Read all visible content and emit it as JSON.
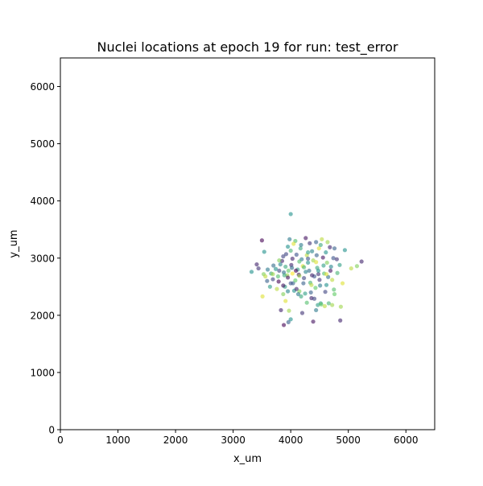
{
  "chart_data": {
    "type": "scatter",
    "title": "Nuclei locations at epoch 19 for run: test_error",
    "xlabel": "x_um",
    "ylabel": "y_um",
    "xlim": [
      0,
      6500
    ],
    "ylim": [
      0,
      6500
    ],
    "xticks": [
      0,
      1000,
      2000,
      3000,
      4000,
      5000,
      6000
    ],
    "yticks": [
      0,
      1000,
      2000,
      3000,
      4000,
      5000,
      6000
    ],
    "grid": false,
    "legend": "none",
    "colormap": "viridis",
    "marker_alpha": 0.6,
    "points": [
      [
        4000,
        3770,
        0.5
      ],
      [
        3500,
        3310,
        0.0
      ],
      [
        3540,
        3110,
        0.5
      ],
      [
        3320,
        2760,
        0.5
      ],
      [
        3410,
        2890,
        0.1
      ],
      [
        3440,
        2820,
        0.15
      ],
      [
        3530,
        2720,
        0.8
      ],
      [
        3560,
        2680,
        0.9
      ],
      [
        3590,
        2600,
        0.3
      ],
      [
        3660,
        2730,
        0.6
      ],
      [
        3690,
        2630,
        0.2
      ],
      [
        3740,
        2810,
        0.5
      ],
      [
        3780,
        2680,
        0.7
      ],
      [
        3790,
        2590,
        0.0
      ],
      [
        3820,
        2890,
        0.45
      ],
      [
        3850,
        2950,
        0.1
      ],
      [
        3870,
        3030,
        0.2
      ],
      [
        3880,
        2750,
        0.35
      ],
      [
        3900,
        2500,
        0.55
      ],
      [
        3910,
        2250,
        0.95
      ],
      [
        3940,
        2700,
        0.85
      ],
      [
        3960,
        2780,
        0.75
      ],
      [
        3980,
        3330,
        0.4
      ],
      [
        4000,
        3130,
        0.65
      ],
      [
        4010,
        2880,
        0.1
      ],
      [
        4030,
        2730,
        1.0
      ],
      [
        4040,
        2560,
        0.3
      ],
      [
        4060,
        2430,
        0.5
      ],
      [
        4080,
        3300,
        0.7
      ],
      [
        4100,
        3060,
        0.25
      ],
      [
        4120,
        2800,
        0.55
      ],
      [
        4140,
        2710,
        0.05
      ],
      [
        4150,
        2420,
        0.8
      ],
      [
        4170,
        3170,
        0.6
      ],
      [
        4190,
        2980,
        0.4
      ],
      [
        4210,
        2860,
        0.95
      ],
      [
        4230,
        2650,
        0.2
      ],
      [
        4250,
        2380,
        0.55
      ],
      [
        4260,
        3350,
        0.05
      ],
      [
        4280,
        3050,
        0.9
      ],
      [
        4300,
        2920,
        0.5
      ],
      [
        4320,
        2780,
        0.35
      ],
      [
        4340,
        2570,
        0.65
      ],
      [
        4360,
        2300,
        0.1
      ],
      [
        4370,
        3120,
        0.45
      ],
      [
        4390,
        2960,
        0.85
      ],
      [
        4410,
        2680,
        0.25
      ],
      [
        4430,
        2480,
        0.75
      ],
      [
        4440,
        3280,
        0.3
      ],
      [
        4460,
        2830,
        0.6
      ],
      [
        4480,
        2720,
        0.15
      ],
      [
        4490,
        3170,
        0.95
      ],
      [
        4510,
        2520,
        0.4
      ],
      [
        4520,
        2210,
        0.55
      ],
      [
        4540,
        3330,
        0.9
      ],
      [
        4560,
        3010,
        0.05
      ],
      [
        4580,
        2730,
        0.7
      ],
      [
        4600,
        2410,
        0.2
      ],
      [
        4610,
        3100,
        0.5
      ],
      [
        4630,
        2920,
        0.8
      ],
      [
        4650,
        2670,
        0.35
      ],
      [
        4660,
        2210,
        0.65
      ],
      [
        4680,
        3190,
        0.1
      ],
      [
        4700,
        2850,
        0.45
      ],
      [
        4720,
        2620,
        0.9
      ],
      [
        4740,
        3000,
        0.25
      ],
      [
        4760,
        2370,
        0.75
      ],
      [
        4800,
        2980,
        0.15
      ],
      [
        4850,
        2880,
        0.55
      ],
      [
        4870,
        2150,
        0.85
      ],
      [
        4900,
        2560,
        0.95
      ],
      [
        4940,
        3140,
        0.5
      ],
      [
        5050,
        2820,
        0.9
      ],
      [
        5150,
        2860,
        0.8
      ],
      [
        5230,
        2940,
        0.1
      ],
      [
        3510,
        2330,
        0.95
      ],
      [
        3830,
        2090,
        0.1
      ],
      [
        3880,
        1830,
        0.0
      ],
      [
        3960,
        1880,
        0.3
      ],
      [
        4000,
        1930,
        0.5
      ],
      [
        3970,
        2080,
        0.85
      ],
      [
        4200,
        2040,
        0.15
      ],
      [
        4390,
        1890,
        0.05
      ],
      [
        4440,
        2090,
        0.4
      ],
      [
        4470,
        2180,
        0.55
      ],
      [
        4720,
        2180,
        0.85
      ],
      [
        4860,
        1910,
        0.1
      ],
      [
        4530,
        2190,
        0.75
      ],
      [
        4350,
        2400,
        0.3
      ],
      [
        4180,
        2330,
        0.6
      ],
      [
        4100,
        2460,
        0.1
      ],
      [
        3950,
        2420,
        0.45
      ],
      [
        3870,
        2520,
        0.05
      ],
      [
        3760,
        2460,
        0.9
      ],
      [
        3640,
        2500,
        0.55
      ],
      [
        3700,
        2870,
        0.35
      ],
      [
        3800,
        2960,
        0.8
      ],
      [
        3920,
        3070,
        0.2
      ],
      [
        3950,
        3200,
        0.5
      ],
      [
        4050,
        3250,
        0.95
      ],
      [
        4180,
        3230,
        0.4
      ],
      [
        4330,
        3260,
        0.15
      ],
      [
        4520,
        3230,
        0.6
      ],
      [
        4640,
        3280,
        0.85
      ],
      [
        4760,
        3170,
        0.3
      ],
      [
        4810,
        2740,
        0.65
      ],
      [
        4690,
        2780,
        0.05
      ],
      [
        4570,
        2870,
        0.55
      ],
      [
        4440,
        2930,
        0.95
      ],
      [
        4300,
        2990,
        0.25
      ],
      [
        4150,
        2940,
        0.7
      ],
      [
        4030,
        2990,
        0.1
      ],
      [
        3910,
        2850,
        0.6
      ],
      [
        3800,
        2780,
        0.2
      ],
      [
        3690,
        2720,
        0.85
      ],
      [
        3600,
        2800,
        0.4
      ],
      [
        3950,
        2660,
        0.05
      ],
      [
        4080,
        2610,
        0.75
      ],
      [
        4220,
        2560,
        0.3
      ],
      [
        4360,
        2530,
        0.9
      ],
      [
        4500,
        2620,
        0.15
      ],
      [
        4620,
        2530,
        0.5
      ],
      [
        4750,
        2450,
        0.7
      ],
      [
        4260,
        2760,
        0.45
      ],
      [
        4150,
        2690,
        0.85
      ],
      [
        4020,
        2830,
        0.35
      ],
      [
        3890,
        2700,
        0.6
      ],
      [
        4090,
        2780,
        0.0
      ],
      [
        4230,
        2840,
        0.65
      ],
      [
        4370,
        2700,
        0.1
      ],
      [
        4480,
        2780,
        0.5
      ],
      [
        4620,
        2720,
        0.95
      ],
      [
        4000,
        2560,
        0.25
      ],
      [
        3870,
        2370,
        0.8
      ],
      [
        4130,
        2370,
        0.4
      ],
      [
        4280,
        2220,
        0.7
      ],
      [
        4410,
        2290,
        0.2
      ],
      [
        4590,
        2160,
        0.9
      ],
      [
        4300,
        3100,
        0.55
      ],
      [
        4450,
        3050,
        0.3
      ]
    ]
  }
}
